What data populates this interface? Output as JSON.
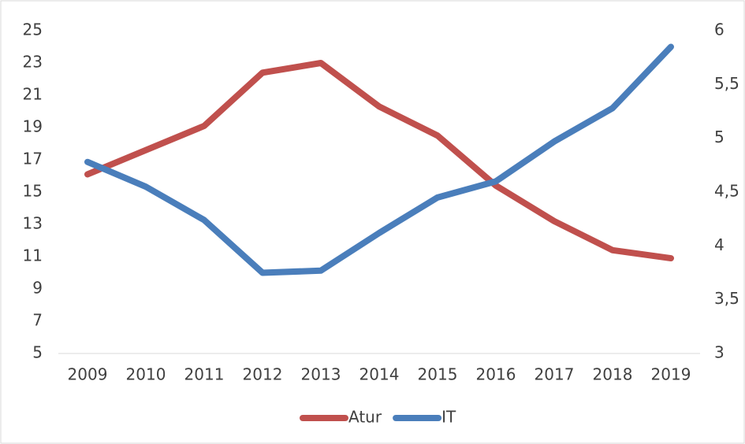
{
  "chart_data": {
    "type": "line",
    "categories": [
      "2009",
      "2010",
      "2011",
      "2012",
      "2013",
      "2014",
      "2015",
      "2016",
      "2017",
      "2018",
      "2019"
    ],
    "series": [
      {
        "name": "Atur",
        "color": "#c0504d",
        "values": [
          16.1,
          17.6,
          19.1,
          22.4,
          23.0,
          20.3,
          18.5,
          15.4,
          13.2,
          11.4,
          10.9
        ]
      },
      {
        "name": "IT",
        "color": "#4a7ebb",
        "axis": "y2",
        "values": [
          4.78,
          4.55,
          4.24,
          3.75,
          3.77,
          4.12,
          4.45,
          4.6,
          4.97,
          5.28,
          5.85
        ]
      }
    ],
    "ylim": [
      5,
      25
    ],
    "yticks": [
      5,
      7,
      9,
      11,
      13,
      15,
      17,
      19,
      21,
      23,
      25
    ],
    "y2lim": [
      3,
      6
    ],
    "y2ticks": [
      3,
      {
        "value": 3.5,
        "label": "3,5"
      },
      4,
      {
        "value": 4.5,
        "label": "4,5"
      },
      5,
      {
        "value": 5.5,
        "label": "5,5"
      },
      6
    ],
    "grid": false,
    "legend": "bottom"
  }
}
